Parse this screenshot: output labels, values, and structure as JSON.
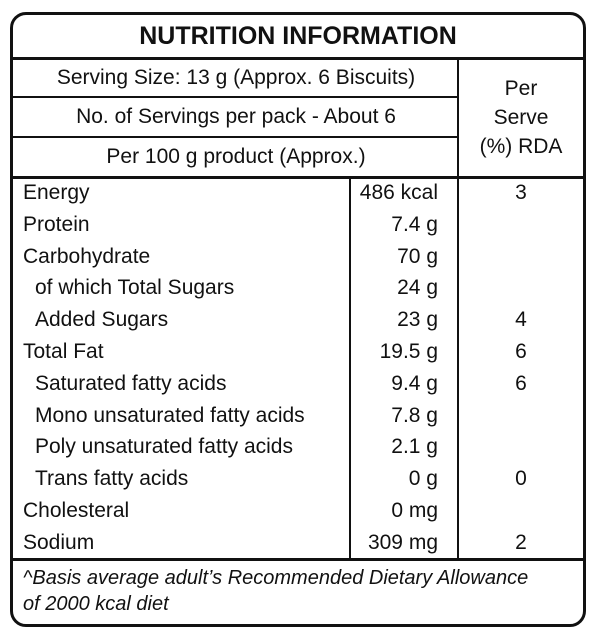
{
  "title": "NUTRITION INFORMATION",
  "header": {
    "serving_size": "Serving Size: 13 g (Approx. 6 Biscuits)",
    "servings_per_pack": "No. of Servings per pack - About 6",
    "per_100g": "Per 100 g product (Approx.)",
    "per_serve_line1": "Per",
    "per_serve_line2": "Serve",
    "per_serve_line3": "(%) RDA"
  },
  "rows": [
    {
      "name": "Energy",
      "value": "486 kcal",
      "rda": "3"
    },
    {
      "name": "Protein",
      "value": "7.4 g",
      "rda": ""
    },
    {
      "name": "Carbohydrate",
      "value": "70 g",
      "rda": ""
    },
    {
      "name": "of which Total Sugars",
      "value": "24 g",
      "rda": ""
    },
    {
      "name": "Added Sugars",
      "value": "23 g",
      "rda": "4"
    },
    {
      "name": "Total Fat",
      "value": "19.5 g",
      "rda": "6"
    },
    {
      "name": "Saturated fatty acids",
      "value": "9.4 g",
      "rda": "6"
    },
    {
      "name": "Mono unsaturated fatty acids",
      "value": "7.8 g",
      "rda": ""
    },
    {
      "name": "Poly unsaturated fatty acids",
      "value": "2.1 g",
      "rda": ""
    },
    {
      "name": "Trans fatty acids",
      "value": "0 g",
      "rda": "0"
    },
    {
      "name": "Cholesteral",
      "value": "0 mg",
      "rda": ""
    },
    {
      "name": "Sodium",
      "value": "309 mg",
      "rda": "2"
    }
  ],
  "footnote": {
    "line1": "^Basis average adult’s Recommended Dietary Allowance",
    "line2": "of 2000 kcal diet"
  }
}
